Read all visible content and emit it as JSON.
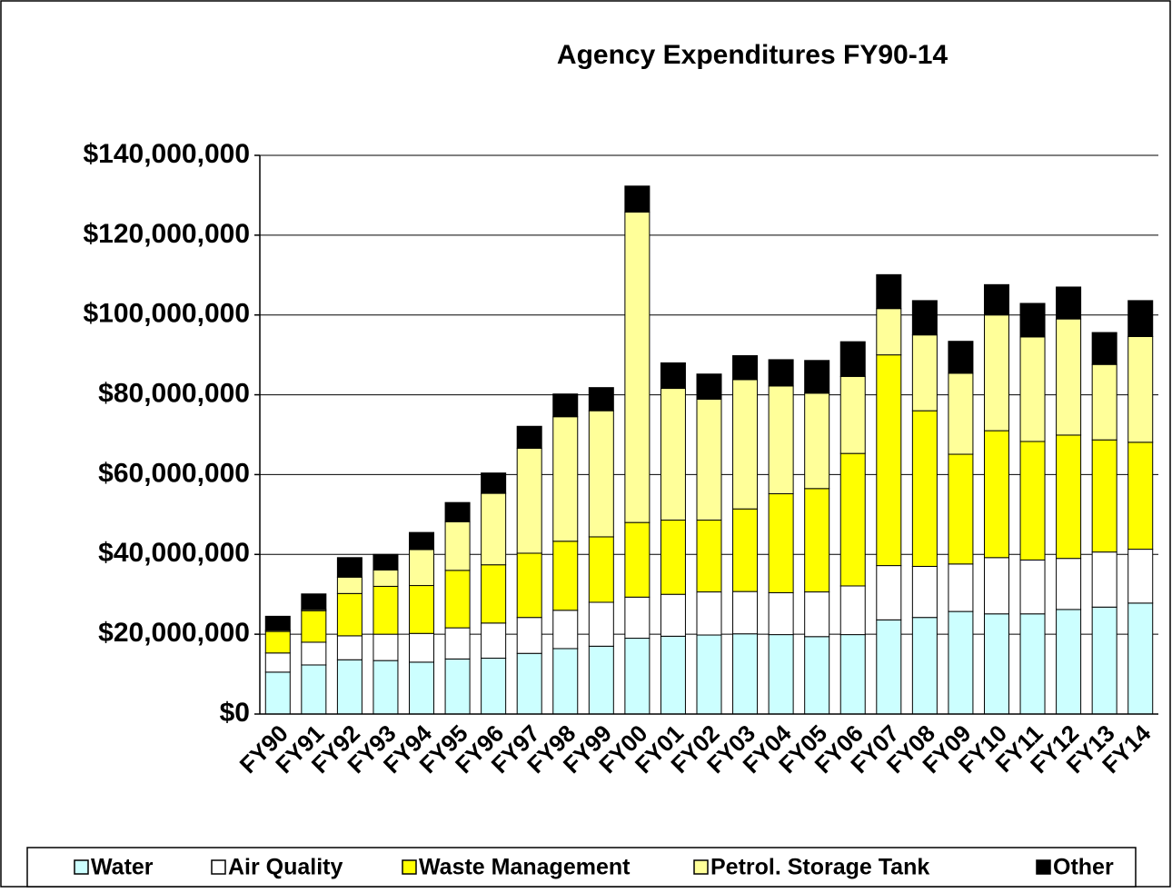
{
  "chart_data": {
    "type": "stacked_bar",
    "title": "Agency Expenditures FY90-14",
    "categories": [
      "FY90",
      "FY91",
      "FY92",
      "FY93",
      "FY94",
      "FY95",
      "FY96",
      "FY97",
      "FY98",
      "FY99",
      "FY00",
      "FY01",
      "FY02",
      "FY03",
      "FY04",
      "FY05",
      "FY06",
      "FY07",
      "FY08",
      "FY09",
      "FY10",
      "FY11",
      "FY12",
      "FY13",
      "FY14"
    ],
    "series": [
      {
        "name": "Water",
        "color": "#ccffff",
        "values": [
          10500000,
          12300000,
          13600000,
          13400000,
          13000000,
          13800000,
          14000000,
          15200000,
          16400000,
          17000000,
          19000000,
          19500000,
          19800000,
          20100000,
          19900000,
          19400000,
          19900000,
          23600000,
          24200000,
          25700000,
          25100000,
          25100000,
          26200000,
          26800000,
          27800000
        ]
      },
      {
        "name": "Air Quality",
        "color": "#ffffff",
        "values": [
          4800000,
          5700000,
          6000000,
          6600000,
          7200000,
          7800000,
          8800000,
          9000000,
          9600000,
          11000000,
          10300000,
          10500000,
          10800000,
          10600000,
          10500000,
          11200000,
          12200000,
          13600000,
          12800000,
          11900000,
          14100000,
          13500000,
          12800000,
          13800000,
          13500000
        ]
      },
      {
        "name": "Waste Management",
        "color": "#ffff00",
        "values": [
          5400000,
          7900000,
          10600000,
          12000000,
          12000000,
          14400000,
          14600000,
          16100000,
          17300000,
          16400000,
          18700000,
          18600000,
          18000000,
          20700000,
          24800000,
          25900000,
          33200000,
          52800000,
          39000000,
          27500000,
          31800000,
          29700000,
          30900000,
          28100000,
          26800000
        ]
      },
      {
        "name": "Petrol. Storage Tank",
        "color": "#ffff99",
        "values": [
          300000,
          300000,
          4100000,
          4100000,
          9000000,
          12200000,
          17900000,
          26300000,
          31200000,
          31600000,
          77800000,
          33000000,
          30300000,
          32400000,
          27000000,
          23900000,
          19300000,
          11600000,
          19000000,
          20300000,
          29000000,
          26200000,
          29100000,
          18900000,
          26500000
        ]
      },
      {
        "name": "Other",
        "color": "#000000",
        "values": [
          3500000,
          3900000,
          4900000,
          3900000,
          4300000,
          4800000,
          5100000,
          5500000,
          5700000,
          5800000,
          6500000,
          6400000,
          6300000,
          6000000,
          6600000,
          8200000,
          8700000,
          8500000,
          8600000,
          8000000,
          7600000,
          8400000,
          8000000,
          8000000,
          9000000
        ]
      }
    ],
    "ylim": [
      0,
      140000000
    ],
    "yticks": [
      {
        "value": 0,
        "label": "$0"
      },
      {
        "value": 20000000,
        "label": "$20,000,000"
      },
      {
        "value": 40000000,
        "label": "$40,000,000"
      },
      {
        "value": 60000000,
        "label": "$60,000,000"
      },
      {
        "value": 80000000,
        "label": "$80,000,000"
      },
      {
        "value": 100000000,
        "label": "$100,000,000"
      },
      {
        "value": 120000000,
        "label": "$120,000,000"
      },
      {
        "value": 140000000,
        "label": "$140,000,000"
      }
    ],
    "grid": true,
    "legend": "bottom"
  }
}
